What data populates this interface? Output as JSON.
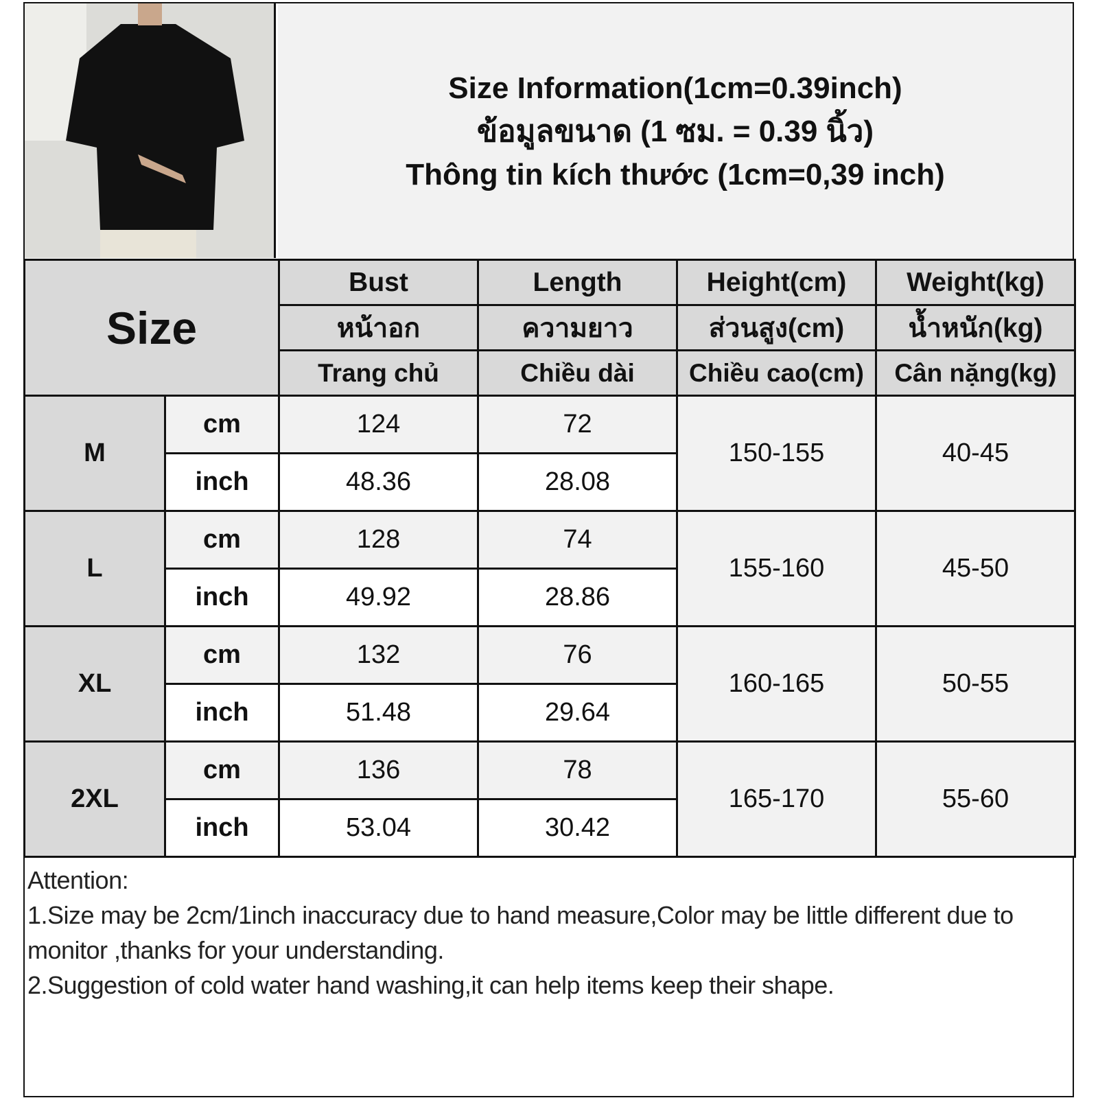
{
  "title_lines": [
    "Size Information(1cm=0.39inch)",
    "ข้อมูลขนาด (1 ซม. = 0.39 นิ้ว)",
    "Thông tin kích thước (1cm=0,39 inch)"
  ],
  "size_label": "Size",
  "columns": [
    {
      "en": "Bust",
      "th": "หน้าอก",
      "vi": "Trang chủ"
    },
    {
      "en": "Length",
      "th": "ความยาว",
      "vi": "Chiều dài"
    },
    {
      "en": "Height(cm)",
      "th": "ส่วนสูง(cm)",
      "vi": "Chiều cao(cm)"
    },
    {
      "en": "Weight(kg)",
      "th": "น้ำหนัก(kg)",
      "vi": "Cân nặng(kg)"
    }
  ],
  "units": {
    "cm": "cm",
    "inch": "inch"
  },
  "rows": [
    {
      "size": "M",
      "bust_cm": "124",
      "length_cm": "72",
      "bust_in": "48.36",
      "length_in": "28.08",
      "height": "150-155",
      "weight": "40-45"
    },
    {
      "size": "L",
      "bust_cm": "128",
      "length_cm": "74",
      "bust_in": "49.92",
      "length_in": "28.86",
      "height": "155-160",
      "weight": "45-50"
    },
    {
      "size": "XL",
      "bust_cm": "132",
      "length_cm": "76",
      "bust_in": "51.48",
      "length_in": "29.64",
      "height": "160-165",
      "weight": "50-55"
    },
    {
      "size": "2XL",
      "bust_cm": "136",
      "length_cm": "78",
      "bust_in": "53.04",
      "length_in": "30.42",
      "height": "165-170",
      "weight": "55-60"
    }
  ],
  "attention": {
    "heading": "Attention:",
    "line1": "1.Size may be 2cm/1inch inaccuracy due to hand measure,Color may be little different due to monitor ,thanks for your understanding.",
    "line2": "2.Suggestion of cold water hand washing,it can help items keep their shape."
  }
}
